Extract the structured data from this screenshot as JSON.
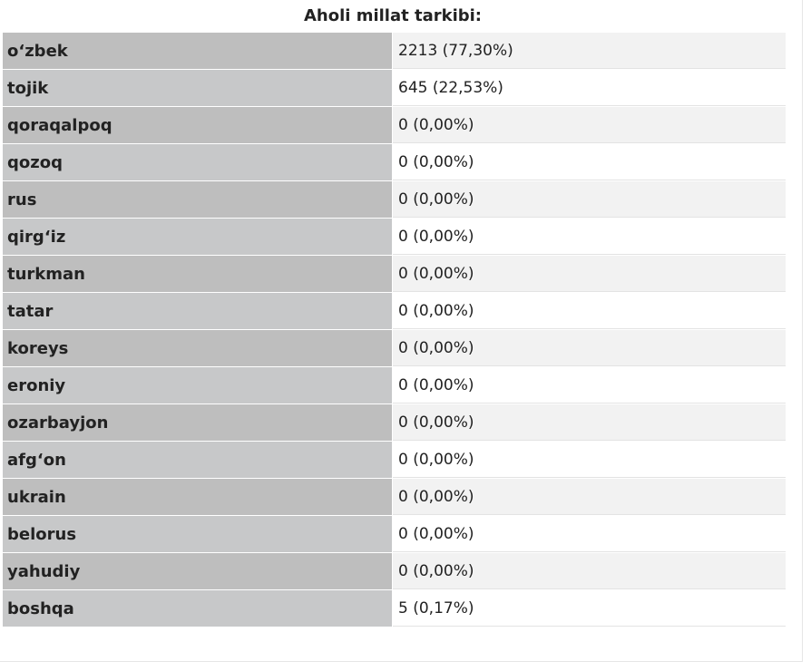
{
  "title": "Aholi millat tarkibi:",
  "rows": [
    {
      "name": "o‘zbek",
      "value": "2213 (77,30%)"
    },
    {
      "name": "tojik",
      "value": "645 (22,53%)"
    },
    {
      "name": "qoraqalpoq",
      "value": "0 (0,00%)"
    },
    {
      "name": "qozoq",
      "value": "0 (0,00%)"
    },
    {
      "name": "rus",
      "value": "0 (0,00%)"
    },
    {
      "name": "qirg‘iz",
      "value": "0 (0,00%)"
    },
    {
      "name": "turkman",
      "value": "0 (0,00%)"
    },
    {
      "name": "tatar",
      "value": "0 (0,00%)"
    },
    {
      "name": "koreys",
      "value": "0 (0,00%)"
    },
    {
      "name": "eroniy",
      "value": "0 (0,00%)"
    },
    {
      "name": "ozarbayjon",
      "value": "0 (0,00%)"
    },
    {
      "name": "afg‘on",
      "value": "0 (0,00%)"
    },
    {
      "name": "ukrain",
      "value": "0 (0,00%)"
    },
    {
      "name": "belorus",
      "value": "0 (0,00%)"
    },
    {
      "name": "yahudiy",
      "value": "0 (0,00%)"
    },
    {
      "name": "boshqa",
      "value": "5 (0,17%)"
    }
  ]
}
